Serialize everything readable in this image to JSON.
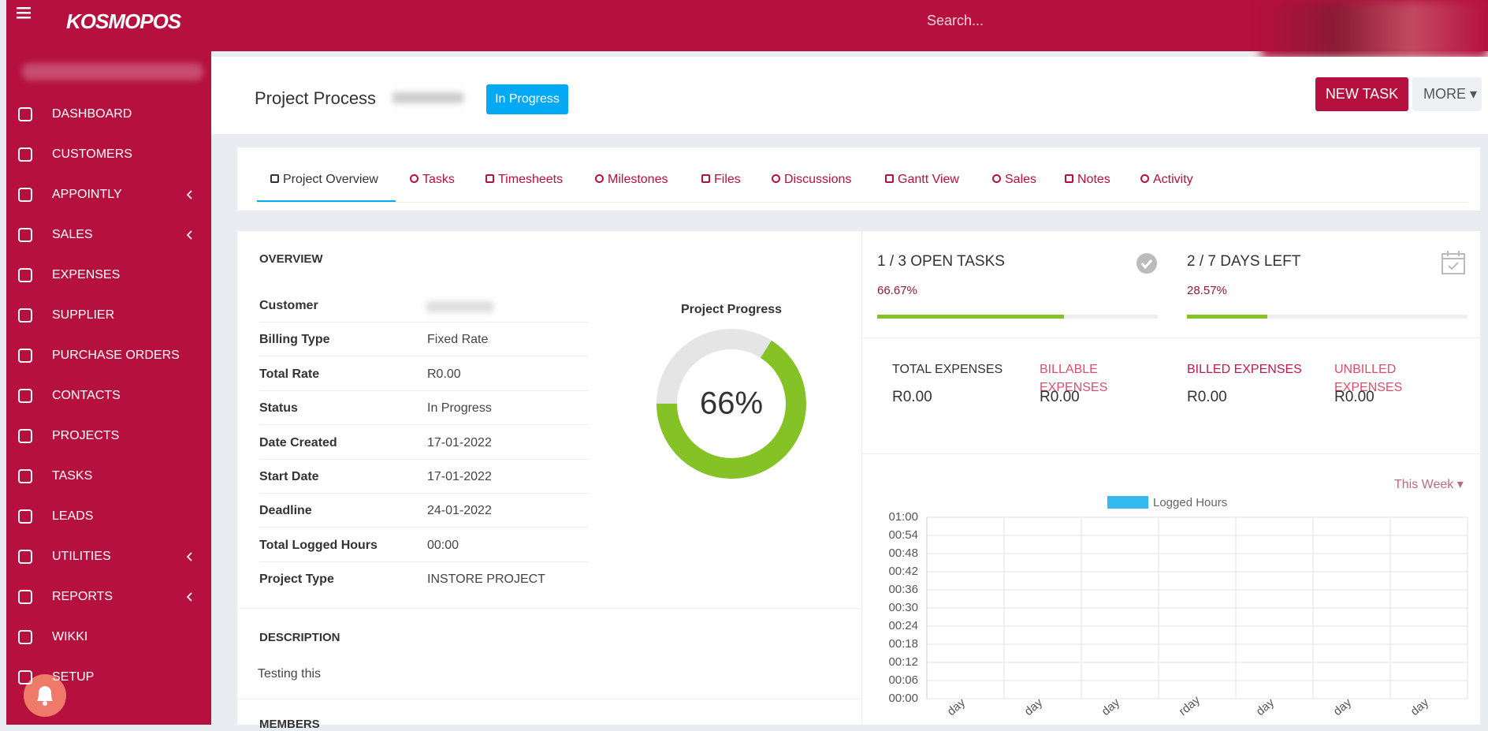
{
  "header": {
    "logo": "KOSMOPOS",
    "search": "Search..."
  },
  "sidebar": {
    "items": [
      {
        "label": "DASHBOARD"
      },
      {
        "label": "CUSTOMERS"
      },
      {
        "label": "APPOINTLY",
        "submenu": true
      },
      {
        "label": "SALES",
        "submenu": true
      },
      {
        "label": "EXPENSES"
      },
      {
        "label": "SUPPLIER"
      },
      {
        "label": "PURCHASE ORDERS"
      },
      {
        "label": "CONTACTS"
      },
      {
        "label": "PROJECTS"
      },
      {
        "label": "TASKS"
      },
      {
        "label": "LEADS"
      },
      {
        "label": "UTILITIES",
        "submenu": true
      },
      {
        "label": "REPORTS",
        "submenu": true
      },
      {
        "label": "WIKKI"
      },
      {
        "label": "SETUP"
      }
    ]
  },
  "project": {
    "title": "Project Process",
    "status": "In Progress",
    "new_task": "NEW TASK",
    "more": "MORE"
  },
  "tabs": [
    "Project Overview",
    "Tasks",
    "Timesheets",
    "Milestones",
    "Files",
    "Discussions",
    "Gantt View",
    "Sales",
    "Notes",
    "Activity"
  ],
  "overview": {
    "heading": "OVERVIEW",
    "rows": [
      {
        "label": "Customer"
      },
      {
        "label": "Billing Type",
        "value": "Fixed Rate"
      },
      {
        "label": "Total Rate",
        "value": "R0.00"
      },
      {
        "label": "Status",
        "value": "In Progress"
      },
      {
        "label": "Date Created",
        "value": "17-01-2022"
      },
      {
        "label": "Start Date",
        "value": "17-01-2022"
      },
      {
        "label": "Deadline",
        "value": "24-01-2022"
      },
      {
        "label": "Total Logged Hours",
        "value": "00:00"
      },
      {
        "label": "Project Type",
        "value": "INSTORE PROJECT"
      }
    ]
  },
  "progress": {
    "title": "Project Progress",
    "value": 66,
    "value_label": "66%",
    "color": "#84c225"
  },
  "stats": [
    {
      "title": "1 / 3 OPEN TASKS",
      "value": 66.67,
      "value_label": "66.67%"
    },
    {
      "title": "2 / 7 DAYS LEFT",
      "value": 28.57,
      "value_label": "28.57%"
    }
  ],
  "expenses": [
    {
      "label": "TOTAL EXPENSES",
      "amount": "R0.00"
    },
    {
      "label": "BILLABLE EXPENSES",
      "amount": "R0.00"
    },
    {
      "label": "BILLED EXPENSES",
      "amount": "R0.00"
    },
    {
      "label": "UNBILLED EXPENSES",
      "amount": "R0.00"
    }
  ],
  "chart": {
    "type": "bar",
    "period": "This Week",
    "categories": [
      "day",
      "day",
      "day",
      "rday",
      "day",
      "day",
      "day"
    ],
    "series": [
      {
        "name": "Logged Hours",
        "color": "#36b9ee",
        "values": [
          0,
          0,
          0,
          0,
          0,
          0,
          0
        ]
      }
    ],
    "ylim": [
      0,
      1
    ],
    "yticks": [
      {
        "value": 0,
        "label": "00:00"
      },
      {
        "value": 0.1,
        "label": "00:06"
      },
      {
        "value": 0.2,
        "label": "00:12"
      },
      {
        "value": 0.3,
        "label": "00:18"
      },
      {
        "value": 0.4,
        "label": "00:24"
      },
      {
        "value": 0.5,
        "label": "00:30"
      },
      {
        "value": 0.6,
        "label": "00:36"
      },
      {
        "value": 0.7,
        "label": "00:42"
      },
      {
        "value": 0.8,
        "label": "00:48"
      },
      {
        "value": 0.9,
        "label": "00:54"
      },
      {
        "value": 1,
        "label": "01:00"
      }
    ],
    "grid": true
  },
  "description": {
    "heading": "DESCRIPTION",
    "text": "Testing this"
  },
  "members": {
    "heading": "MEMBERS"
  }
}
